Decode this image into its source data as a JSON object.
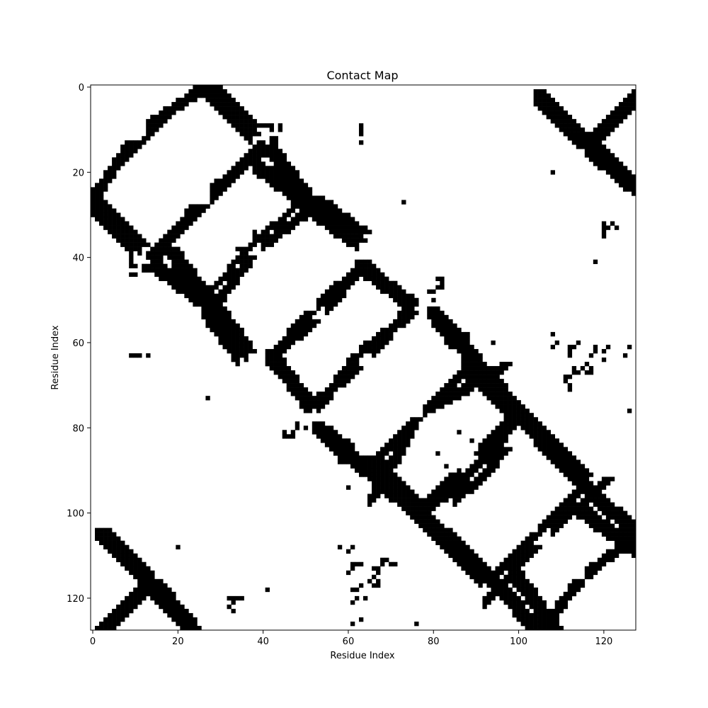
{
  "chart_data": {
    "type": "heatmap",
    "title": "Contact Map",
    "xlabel": "Residue Index",
    "ylabel": "Residue Index",
    "size": 128,
    "xlim": [
      0,
      128
    ],
    "ylim": [
      128,
      0
    ],
    "xticks": [
      0,
      20,
      40,
      60,
      80,
      100,
      120
    ],
    "yticks": [
      0,
      20,
      40,
      60,
      80,
      100,
      120
    ],
    "colors": {
      "contact": "#000000",
      "no_contact": "#ffffff"
    },
    "grid": false,
    "bands": [
      {
        "i0": 0,
        "j0": 24,
        "i1": 24,
        "j1": 0,
        "width": 2
      },
      {
        "i0": 0,
        "j0": 28,
        "i1": 9,
        "j1": 37
      },
      {
        "i0": 13,
        "j0": 8,
        "i1": 25,
        "j1": 0
      },
      {
        "i0": 26,
        "j0": 0,
        "i1": 37,
        "j1": 11
      },
      {
        "i0": 14,
        "j0": 40,
        "i1": 23,
        "j1": 28
      },
      {
        "i0": 14,
        "j0": 41,
        "i1": 27,
        "j1": 51
      },
      {
        "i0": 26,
        "j0": 52,
        "i1": 34,
        "j1": 63
      },
      {
        "i0": 28,
        "j0": 25,
        "i1": 38,
        "j1": 14
      },
      {
        "i0": 38,
        "j0": 18,
        "i1": 49,
        "j1": 26
      },
      {
        "i0": 28,
        "j0": 51,
        "i1": 36,
        "j1": 40
      },
      {
        "i0": 37,
        "j0": 37,
        "i1": 49,
        "j1": 26,
        "width": 2
      },
      {
        "i0": 49,
        "j0": 27,
        "i1": 62,
        "j1": 36
      },
      {
        "i0": 41,
        "j0": 63,
        "i1": 51,
        "j1": 74
      },
      {
        "i0": 41,
        "j0": 63,
        "i1": 51,
        "j1": 55
      },
      {
        "i0": 53,
        "j0": 50,
        "i1": 63,
        "j1": 41
      },
      {
        "i0": 51,
        "j0": 74,
        "i1": 61,
        "j1": 66
      },
      {
        "i0": 62,
        "j0": 41,
        "i1": 74,
        "j1": 50
      },
      {
        "i0": 63,
        "j0": 61,
        "i1": 74,
        "j1": 53
      },
      {
        "i0": 52,
        "j0": 79,
        "i1": 59,
        "j1": 84
      },
      {
        "i0": 58,
        "j0": 86,
        "i1": 67,
        "j1": 88
      },
      {
        "i0": 66,
        "j0": 88,
        "i1": 77,
        "j1": 99
      },
      {
        "i0": 66,
        "j0": 87,
        "i1": 75,
        "j1": 78
      },
      {
        "i0": 77,
        "j0": 100,
        "i1": 86,
        "j1": 108
      },
      {
        "i0": 77,
        "j0": 100,
        "i1": 89,
        "j1": 89
      },
      {
        "i0": 86,
        "j0": 108,
        "i1": 94,
        "j1": 116
      },
      {
        "i0": 80,
        "j0": 53,
        "i1": 89,
        "j1": 63
      },
      {
        "i0": 89,
        "j0": 64,
        "i1": 100,
        "j1": 76
      },
      {
        "i0": 80,
        "j0": 74,
        "i1": 96,
        "j1": 65
      },
      {
        "i0": 100,
        "j0": 76,
        "i1": 115,
        "j1": 91
      },
      {
        "i0": 94,
        "j0": 116,
        "i1": 104,
        "j1": 127
      },
      {
        "i0": 93,
        "j0": 115,
        "i1": 103,
        "j1": 105
      },
      {
        "i0": 104,
        "j0": 127,
        "i1": 113,
        "j1": 117
      },
      {
        "i0": 108,
        "j0": 103,
        "i1": 120,
        "j1": 92
      },
      {
        "i0": 102,
        "j0": 79,
        "i1": 113,
        "j1": 89
      },
      {
        "i0": 91,
        "j0": 84,
        "i1": 98,
        "j1": 77
      },
      {
        "i0": 85,
        "j0": 96,
        "i1": 92,
        "j1": 90
      },
      {
        "i0": 113,
        "j0": 98,
        "i1": 127,
        "j1": 108
      },
      {
        "i0": 116,
        "j0": 113,
        "i1": 128,
        "j1": 104
      },
      {
        "i0": 104,
        "j0": 2,
        "i1": 114,
        "j1": 12
      },
      {
        "i0": 116,
        "j0": 14,
        "i1": 128,
        "j1": 2
      },
      {
        "i0": 116,
        "j0": 14,
        "i1": 128,
        "j1": 24
      },
      {
        "i0": 1,
        "j0": 104,
        "i1": 12,
        "j1": 115
      },
      {
        "i0": 0,
        "j0": 128,
        "i1": 12,
        "j1": 116
      },
      {
        "i0": 13,
        "j0": 117,
        "i1": 24,
        "j1": 128
      }
    ],
    "points": [
      [
        9,
        63
      ],
      [
        10,
        63
      ],
      [
        11,
        63
      ],
      [
        27,
        73
      ],
      [
        34,
        38
      ],
      [
        37,
        42
      ],
      [
        38,
        35
      ],
      [
        9,
        42
      ],
      [
        10,
        42
      ],
      [
        9,
        44
      ],
      [
        10,
        44
      ],
      [
        9,
        36
      ],
      [
        10,
        35
      ],
      [
        10,
        36
      ],
      [
        38,
        9
      ],
      [
        38,
        10
      ],
      [
        38,
        11
      ],
      [
        40,
        9
      ],
      [
        41,
        9
      ],
      [
        42,
        9
      ],
      [
        39,
        13
      ],
      [
        40,
        13
      ],
      [
        42,
        12
      ],
      [
        43,
        12
      ],
      [
        42,
        13
      ],
      [
        43,
        13
      ],
      [
        38,
        20
      ],
      [
        39,
        20
      ],
      [
        33,
        120
      ],
      [
        34,
        120
      ],
      [
        35,
        120
      ],
      [
        33,
        123
      ],
      [
        41,
        118
      ],
      [
        63,
        10
      ],
      [
        63,
        11
      ],
      [
        63,
        13
      ],
      [
        45,
        81
      ],
      [
        47,
        81
      ],
      [
        48,
        80
      ],
      [
        46,
        82
      ],
      [
        50,
        80
      ],
      [
        60,
        94
      ],
      [
        66,
        93
      ],
      [
        67,
        93
      ],
      [
        84,
        92
      ],
      [
        85,
        91
      ],
      [
        86,
        90
      ],
      [
        81,
        86
      ],
      [
        83,
        89
      ],
      [
        61,
        112
      ],
      [
        62,
        112
      ],
      [
        61,
        113
      ],
      [
        63,
        112
      ],
      [
        60,
        114
      ],
      [
        61,
        121
      ],
      [
        62,
        120
      ],
      [
        64,
        120
      ],
      [
        61,
        118
      ],
      [
        63,
        117
      ],
      [
        62,
        118
      ],
      [
        63,
        125
      ],
      [
        61,
        126
      ],
      [
        59,
        128
      ],
      [
        58,
        108
      ],
      [
        60,
        109
      ],
      [
        61,
        108
      ],
      [
        68,
        111
      ],
      [
        69,
        111
      ],
      [
        68,
        112
      ],
      [
        70,
        112
      ],
      [
        71,
        112
      ],
      [
        66,
        117
      ],
      [
        67,
        117
      ],
      [
        67,
        116
      ],
      [
        66,
        115
      ],
      [
        65,
        116
      ],
      [
        67,
        114
      ],
      [
        66,
        113
      ],
      [
        67,
        113
      ],
      [
        73,
        27
      ],
      [
        76,
        126
      ],
      [
        79,
        48
      ],
      [
        82,
        45
      ],
      [
        82,
        47
      ],
      [
        94,
        86
      ],
      [
        94,
        87
      ],
      [
        94,
        88
      ],
      [
        20,
        108
      ],
      [
        41,
        118
      ],
      [
        32,
        120
      ],
      [
        32,
        122
      ],
      [
        33,
        121
      ],
      [
        107,
        101
      ],
      [
        108,
        101
      ],
      [
        110,
        101
      ],
      [
        108,
        20
      ],
      [
        20,
        108
      ]
    ]
  }
}
